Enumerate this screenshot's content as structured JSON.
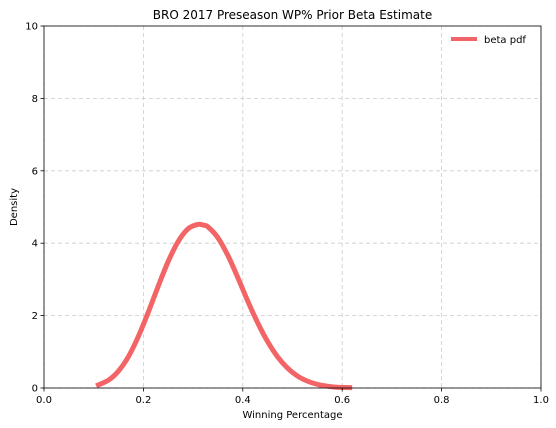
{
  "chart_data": {
    "type": "line",
    "title": "BRO 2017 Preseason WP% Prior Beta Estimate",
    "xlabel": "Winning Percentage",
    "ylabel": "Density",
    "xlim": [
      0.0,
      1.0
    ],
    "ylim": [
      0,
      10
    ],
    "xticks": [
      0.0,
      0.2,
      0.4,
      0.6,
      0.8,
      1.0
    ],
    "xtick_labels": [
      "0.0",
      "0.2",
      "0.4",
      "0.6",
      "0.8",
      "1.0"
    ],
    "yticks": [
      0,
      2,
      4,
      6,
      8,
      10
    ],
    "ytick_labels": [
      "0",
      "2",
      "4",
      "6",
      "8",
      "10"
    ],
    "grid": true,
    "legend_position": "top-right",
    "series": [
      {
        "name": "beta pdf",
        "color": "#f26466",
        "x": [
          0.105,
          0.13,
          0.15,
          0.17,
          0.19,
          0.21,
          0.23,
          0.25,
          0.27,
          0.29,
          0.31,
          0.32,
          0.33,
          0.35,
          0.37,
          0.39,
          0.41,
          0.43,
          0.45,
          0.47,
          0.49,
          0.51,
          0.53,
          0.55,
          0.57,
          0.59,
          0.62
        ],
        "y": [
          0.06,
          0.22,
          0.47,
          0.87,
          1.43,
          2.1,
          2.82,
          3.5,
          4.05,
          4.4,
          4.52,
          4.5,
          4.45,
          4.15,
          3.66,
          3.05,
          2.4,
          1.8,
          1.28,
          0.86,
          0.55,
          0.33,
          0.19,
          0.1,
          0.05,
          0.02,
          0.01
        ]
      }
    ]
  }
}
